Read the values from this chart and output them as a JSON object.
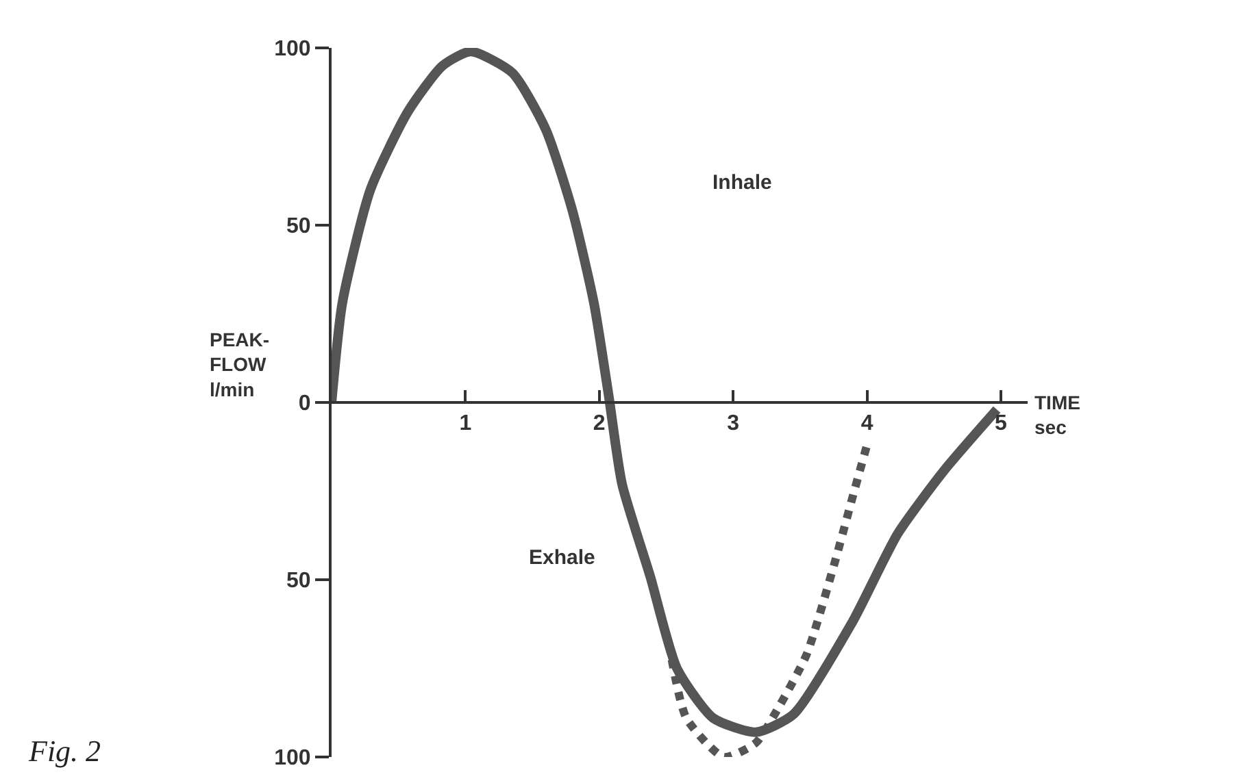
{
  "chart_data": {
    "type": "line",
    "xlabel": "TIME\nsec",
    "ylabel": "PEAK-\nFLOW\nl/min",
    "annotations": [
      "Inhale",
      "Exhale",
      "Fig. 2"
    ],
    "series": [
      {
        "color": "#555555",
        "line_style": "solid",
        "x": [
          0,
          0.08,
          0.29,
          0.57,
          0.83,
          1.04,
          1.35,
          1.6,
          1.8,
          1.96,
          2.07,
          2.17,
          2.38,
          2.58,
          2.85,
          3.17,
          3.45,
          3.89,
          4.23,
          4.58,
          4.97
        ],
        "values": [
          0,
          28,
          60,
          82,
          95,
          99,
          93,
          77,
          54,
          28,
          2,
          -23,
          -49,
          -75,
          -89,
          -93,
          -88,
          -62,
          -37,
          -19,
          -2
        ]
      },
      {
        "color": "#555555",
        "line_style": "dotted",
        "x": [
          2.52,
          2.65,
          2.93,
          3.17,
          3.34,
          3.55,
          3.76,
          3.89,
          4.0
        ],
        "values": [
          -68,
          -89,
          -100,
          -96,
          -86,
          -71,
          -45,
          -27,
          -12
        ]
      }
    ],
    "xlim": [
      0,
      5.2
    ],
    "xticks": [
      1,
      2,
      3,
      4,
      5
    ],
    "ylim": [
      -100,
      100
    ],
    "yticks": [
      {
        "value": -100,
        "label": "100"
      },
      {
        "value": -50,
        "label": "50"
      },
      0,
      50,
      100
    ],
    "marker": "none"
  }
}
